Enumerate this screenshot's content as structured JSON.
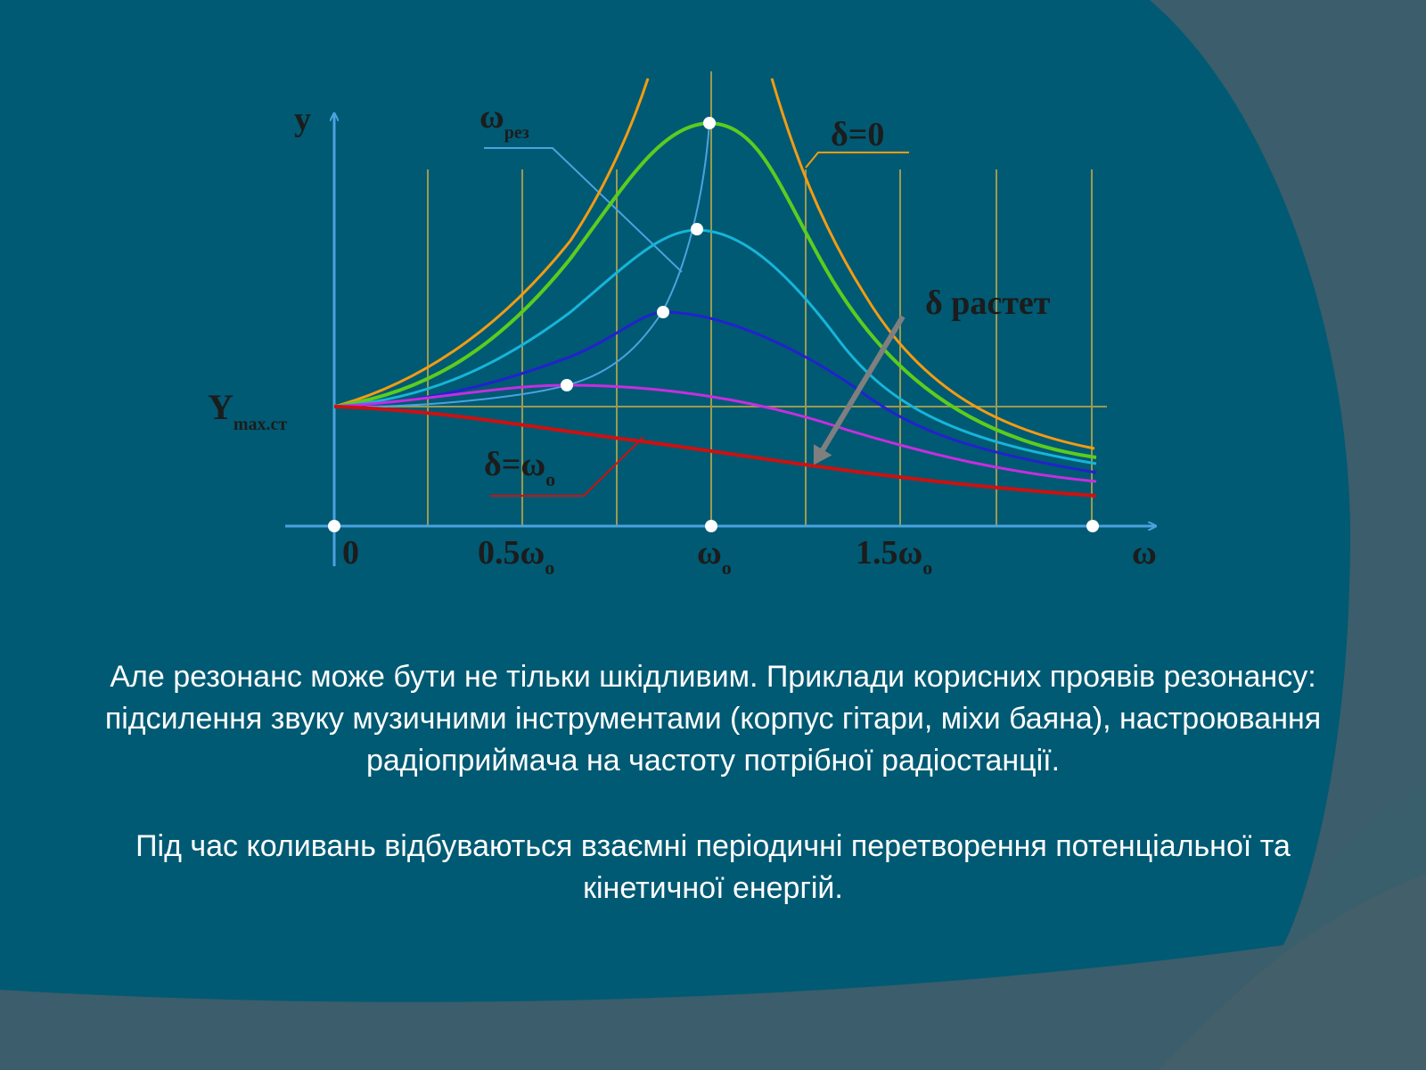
{
  "slide": {
    "paragraph1": "Але резонанс може бути не тільки шкідливим. Приклади корисних проявів резонансу: підсилення звуку музичними інструментами (корпус гітари, міхи баяна), настроювання радіоприймача на частоту потрібної радіостанції.",
    "paragraph2": "Під час коливань відбуваються взаємні періодичні перетворення потенціальної та кінетичної енергій."
  },
  "colors": {
    "background_main": "#005a73",
    "background_band": "#3c5d6b",
    "text": "#ffffff",
    "axis": "#4aa3df",
    "grid": "#b8a64a"
  },
  "diagram": {
    "y_axis_label": "y",
    "x_axis_label": "ω",
    "ymax_label_main": "Y",
    "ymax_label_sub": "max.ст",
    "x_ticks": [
      {
        "main": "0",
        "sub": ""
      },
      {
        "main": "0.5ω",
        "sub": "o"
      },
      {
        "main": "ω",
        "sub": "o"
      },
      {
        "main": "1.5ω",
        "sub": "o"
      }
    ],
    "omega_res_label_main": "ω",
    "omega_res_label_sub": "рез",
    "delta_zero_label": "δ=0",
    "delta_grows_label": "δ растет",
    "delta_omega_label_main": "δ=ω",
    "delta_omega_label_sub": "o",
    "curves": [
      {
        "name": "δ=0",
        "color": "#f39c12"
      },
      {
        "name": "",
        "color": "#5ccc1e"
      },
      {
        "name": "",
        "color": "#16b5d9"
      },
      {
        "name": "",
        "color": "#2222cc"
      },
      {
        "name": "",
        "color": "#c62ee0"
      },
      {
        "name": "δ=ω₀",
        "color": "#cc1111"
      }
    ]
  }
}
